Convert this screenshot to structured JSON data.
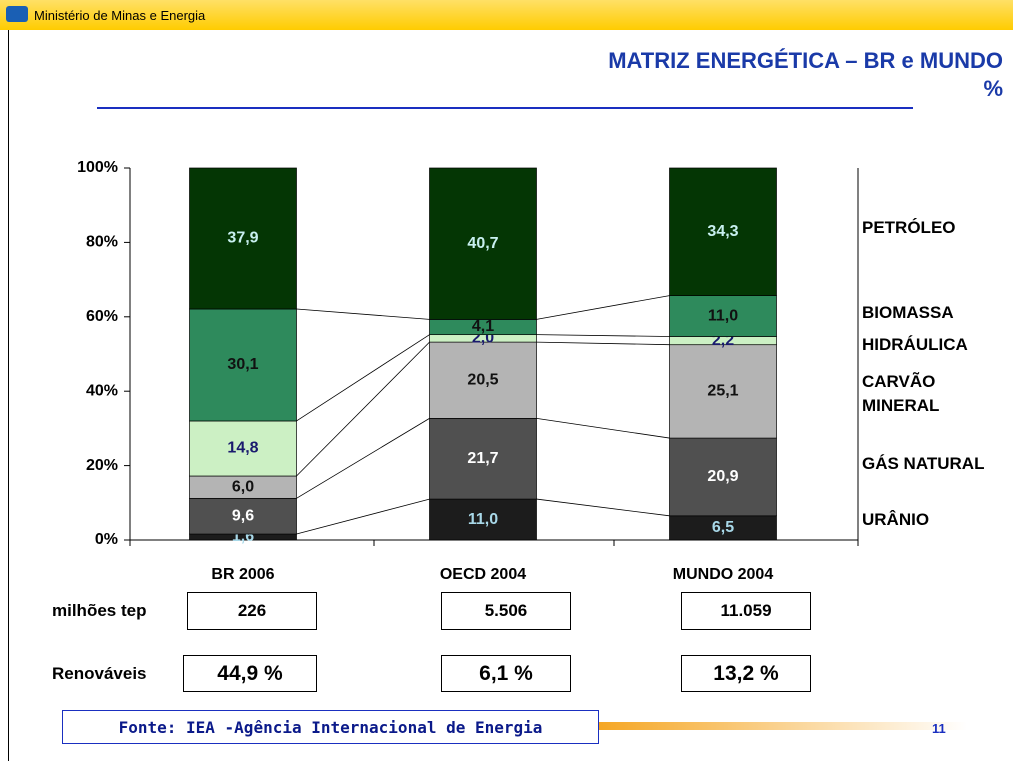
{
  "header": "Ministério de Minas e Energia",
  "chart_data": {
    "type": "stacked_bar",
    "title": "MATRIZ ENERGÉTICA – BR e MUNDO",
    "subtitle": "%",
    "categories": [
      "BR 2006",
      "OECD 2004",
      "MUNDO 2004"
    ],
    "series": [
      {
        "name": "URÂNIO",
        "color": "#1c1c1c",
        "label_color": "#a8d8e8",
        "values": [
          1.6,
          11.0,
          6.5
        ],
        "value_labels": [
          "1,6",
          "11,0",
          "6,5"
        ]
      },
      {
        "name": "GÁS NATURAL",
        "color": "#505050",
        "label_color": "#ffffff",
        "values": [
          9.6,
          21.7,
          20.9
        ],
        "value_labels": [
          "9,6",
          "21,7",
          "20,9"
        ]
      },
      {
        "name": "CARVÃO MINERAL",
        "color": "#b4b4b4",
        "label_color": "#111111",
        "values": [
          6.0,
          20.5,
          25.1
        ],
        "value_labels": [
          "6,0",
          "20,5",
          "25,1"
        ]
      },
      {
        "name": "HIDRÁULICA",
        "color": "#ccf0c4",
        "label_color": "#1a1a6e",
        "values": [
          14.8,
          2.0,
          2.2
        ],
        "value_labels": [
          "14,8",
          "2,0",
          "2,2"
        ]
      },
      {
        "name": "BIOMASSA",
        "color": "#2e8a5c",
        "label_color": "#111111",
        "values": [
          30.1,
          4.1,
          11.0
        ],
        "value_labels": [
          "30,1",
          "4,1",
          "11,0"
        ]
      },
      {
        "name": "PETRÓLEO",
        "color": "#043604",
        "label_color": "#c8f0f0",
        "values": [
          37.9,
          40.7,
          34.3
        ],
        "value_labels": [
          "37,9",
          "40,7",
          "34,3"
        ]
      }
    ],
    "ylim": [
      0,
      100
    ],
    "yticks": [
      {
        "value": 0,
        "label": "0%"
      },
      {
        "value": 20,
        "label": "20%"
      },
      {
        "value": 40,
        "label": "40%"
      },
      {
        "value": 60,
        "label": "60%"
      },
      {
        "value": 80,
        "label": "80%"
      },
      {
        "value": 100,
        "label": "100%"
      }
    ]
  },
  "table": {
    "rows": [
      {
        "label": "milhões tep",
        "values": [
          "226",
          "5.506",
          "11.059"
        ]
      },
      {
        "label": "Renováveis",
        "values": [
          "44,9 %",
          "6,1 %",
          "13,2 %"
        ]
      }
    ]
  },
  "footer": {
    "source": "Fonte: IEA -Agência Internacional de Energia",
    "page": "11"
  }
}
